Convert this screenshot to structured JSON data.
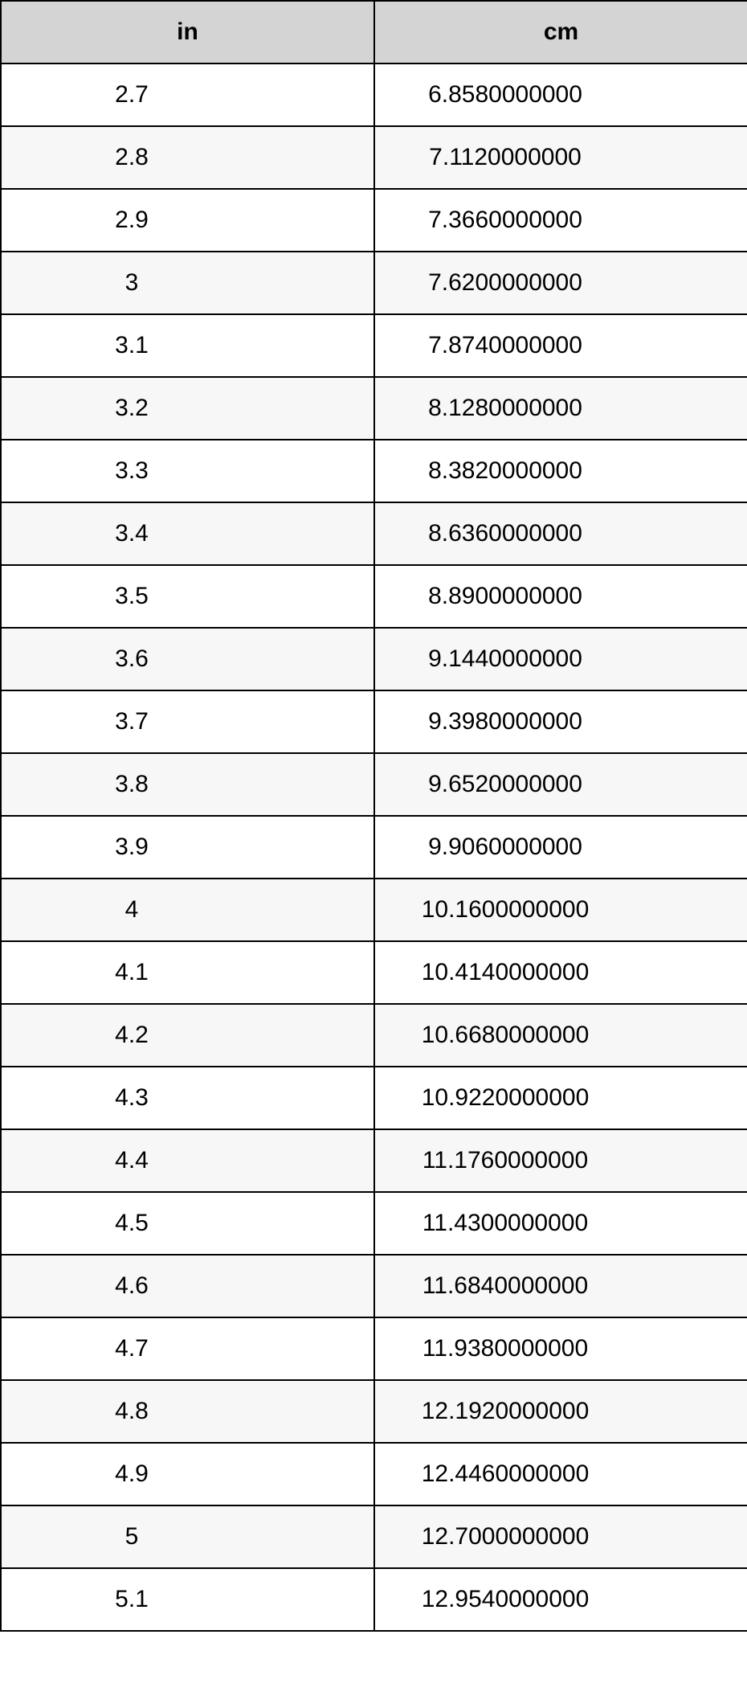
{
  "table": {
    "type": "table",
    "header_bg": "#d4d4d4",
    "row_alt_bg": "#f7f7f7",
    "row_bg": "#ffffff",
    "border_color": "#000000",
    "font_family": "Arial",
    "header_fontsize": 30,
    "cell_fontsize": 30,
    "text_color": "#000000",
    "columns": [
      {
        "key": "in",
        "label": "in",
        "align": "center"
      },
      {
        "key": "cm",
        "label": "cm",
        "align": "center"
      }
    ],
    "rows": [
      {
        "in": "2.7",
        "cm": "6.8580000000"
      },
      {
        "in": "2.8",
        "cm": "7.1120000000"
      },
      {
        "in": "2.9",
        "cm": "7.3660000000"
      },
      {
        "in": "3",
        "cm": "7.6200000000"
      },
      {
        "in": "3.1",
        "cm": "7.8740000000"
      },
      {
        "in": "3.2",
        "cm": "8.1280000000"
      },
      {
        "in": "3.3",
        "cm": "8.3820000000"
      },
      {
        "in": "3.4",
        "cm": "8.6360000000"
      },
      {
        "in": "3.5",
        "cm": "8.8900000000"
      },
      {
        "in": "3.6",
        "cm": "9.1440000000"
      },
      {
        "in": "3.7",
        "cm": "9.3980000000"
      },
      {
        "in": "3.8",
        "cm": "9.6520000000"
      },
      {
        "in": "3.9",
        "cm": "9.9060000000"
      },
      {
        "in": "4",
        "cm": "10.1600000000"
      },
      {
        "in": "4.1",
        "cm": "10.4140000000"
      },
      {
        "in": "4.2",
        "cm": "10.6680000000"
      },
      {
        "in": "4.3",
        "cm": "10.9220000000"
      },
      {
        "in": "4.4",
        "cm": "11.1760000000"
      },
      {
        "in": "4.5",
        "cm": "11.4300000000"
      },
      {
        "in": "4.6",
        "cm": "11.6840000000"
      },
      {
        "in": "4.7",
        "cm": "11.9380000000"
      },
      {
        "in": "4.8",
        "cm": "12.1920000000"
      },
      {
        "in": "4.9",
        "cm": "12.4460000000"
      },
      {
        "in": "5",
        "cm": "12.7000000000"
      },
      {
        "in": "5.1",
        "cm": "12.9540000000"
      }
    ]
  }
}
